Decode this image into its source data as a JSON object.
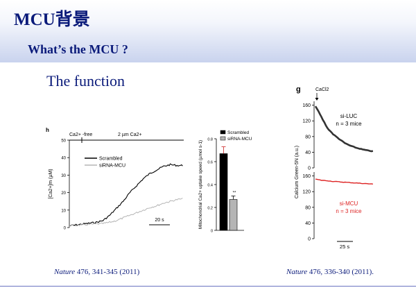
{
  "slide": {
    "title": "MCU背景",
    "subtitle": "What’s the MCU ?",
    "section_heading": "The function"
  },
  "citations": {
    "left": {
      "journal": "Nature",
      "rest": " 476, 341-345 (2011)"
    },
    "right": {
      "journal": "Nature",
      "rest": " 476, 336-340 (2011)."
    }
  },
  "chart_data": [
    {
      "type": "line",
      "panel_label": "h",
      "ylabel": "[Ca2+]m (µM)",
      "ylim": [
        0,
        50
      ],
      "yticks": [
        "0",
        "10",
        "20",
        "30",
        "40",
        "50"
      ],
      "annotations": [
        "Ca2+ -free",
        "2 µm Ca2+"
      ],
      "scale_bar": "20 s",
      "x": [
        0,
        5,
        10,
        15,
        20,
        25,
        30,
        35,
        40,
        45,
        50,
        55,
        60,
        65,
        70,
        75,
        80,
        85
      ],
      "series": [
        {
          "name": "Scrambled",
          "color": "#000000",
          "values": [
            1,
            1.5,
            2,
            2.5,
            3,
            4,
            7,
            11,
            15,
            20,
            24,
            28,
            31,
            33,
            35,
            36,
            35.5,
            35.5
          ]
        },
        {
          "name": "siRNA-MCU",
          "color": "#b5b5b5",
          "values": [
            1,
            1.2,
            1.5,
            1.8,
            2,
            2.3,
            3,
            4,
            5.5,
            7,
            8.5,
            10,
            11.5,
            12.5,
            14,
            15,
            16,
            16.5
          ]
        }
      ]
    },
    {
      "type": "bar",
      "ylabel": "Mitochondrial Ca2+ uptake speed (µmol s-1)",
      "ylim": [
        0,
        0.8
      ],
      "yticks": [
        "0",
        "0.2",
        "0.4",
        "0.6",
        "0.8"
      ],
      "categories": [
        "Scrambled",
        "siRNA-MCU"
      ],
      "values": [
        0.67,
        0.27
      ],
      "errors": [
        0.06,
        0.03
      ],
      "colors": [
        "#000000",
        "#b5b5b5"
      ],
      "significance": "**"
    },
    {
      "type": "line",
      "panel_label": "g",
      "annotation": "CaCl2",
      "ylabel": "Calcium Green-5N (a.u.)",
      "yticks": [
        "0",
        "40",
        "80",
        "120",
        "160"
      ],
      "scale_bar": "25 s",
      "panels": [
        {
          "label": "si-LUC",
          "n_label": "n = 3 mice",
          "color": "#333333",
          "ylim": [
            0,
            170
          ],
          "x": [
            0,
            10,
            20,
            30,
            40,
            50,
            60,
            70,
            80,
            90,
            100
          ],
          "values": [
            158,
            130,
            102,
            86,
            74,
            63,
            56,
            51,
            47,
            44,
            42
          ]
        },
        {
          "label": "si-MCU",
          "n_label": "n = 3 mice",
          "color": "#dd2222",
          "ylim": [
            0,
            170
          ],
          "x": [
            0,
            10,
            20,
            30,
            40,
            50,
            60,
            70,
            80,
            90,
            100
          ],
          "values": [
            152,
            149,
            148,
            146,
            145,
            144,
            143,
            142,
            141,
            140,
            139
          ]
        }
      ]
    }
  ]
}
